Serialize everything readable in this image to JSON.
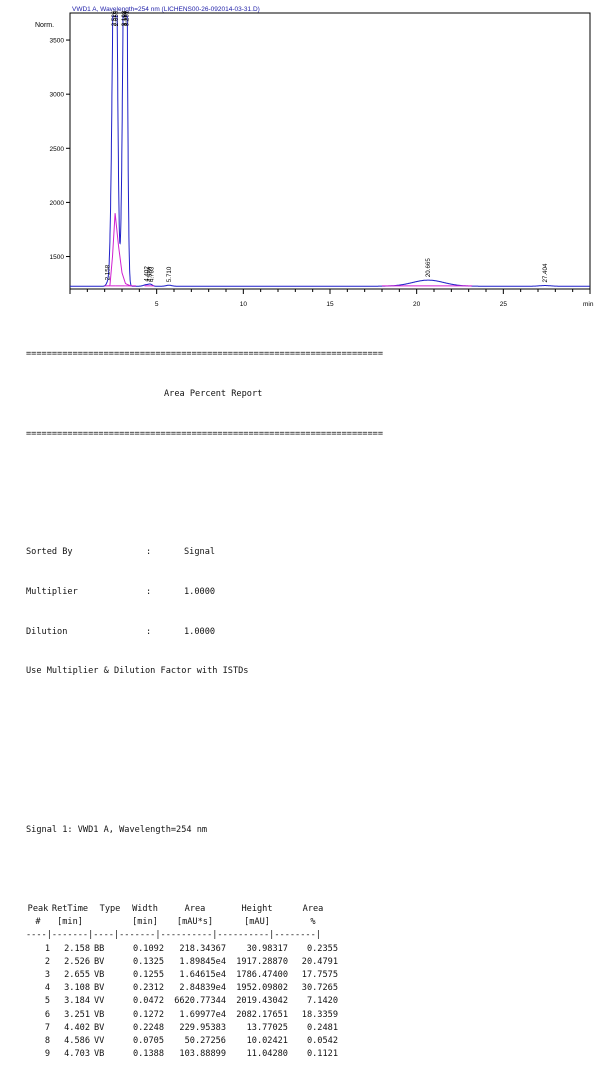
{
  "chart_data": {
    "type": "line",
    "title": "VWD1 A, Wavelength=254 nm (LICHENS00-26-092014-03-31.D)",
    "ylabel": "Norm.",
    "xlabel": "min",
    "xlim": [
      0,
      30
    ],
    "ylim": [
      1200,
      3750
    ],
    "xticks": [
      "5",
      "10",
      "15",
      "20",
      "25"
    ],
    "yticks": [
      "1500",
      "2000",
      "2500",
      "3000",
      "3500"
    ],
    "peak_labels": [
      "2.158",
      "2.526",
      "2.655",
      "3.108",
      "3.184",
      "3.251",
      "4.402",
      "4.586",
      "4.703",
      "5.710",
      "20.665",
      "27.404"
    ],
    "peaks": [
      {
        "x": 2.158,
        "height": 1252
      },
      {
        "x": 2.526,
        "height": 3600
      },
      {
        "x": 2.655,
        "height": 3600
      },
      {
        "x": 3.108,
        "height": 3600
      },
      {
        "x": 3.184,
        "height": 3600
      },
      {
        "x": 3.251,
        "height": 3600
      },
      {
        "x": 4.402,
        "height": 1240
      },
      {
        "x": 4.586,
        "height": 1236
      },
      {
        "x": 4.703,
        "height": 1236
      },
      {
        "x": 5.71,
        "height": 1235
      },
      {
        "x": 20.665,
        "height": 1282
      },
      {
        "x": 27.404,
        "height": 1232
      }
    ],
    "baseline": 1226,
    "series_colors": {
      "trace": "#1f1fc8",
      "integration": "#d020d0",
      "title": "#1a1aa6"
    }
  },
  "report": {
    "separator": "=====================================================================",
    "title": "Area Percent Report",
    "settings": [
      {
        "label": "Sorted By",
        "sep": ":",
        "value": "Signal"
      },
      {
        "label": "Multiplier",
        "sep": ":",
        "value": "1.0000"
      },
      {
        "label": "Dilution",
        "sep": ":",
        "value": "1.0000"
      }
    ],
    "note": "Use Multiplier & Dilution Factor with ISTDs",
    "signal": "Signal 1: VWD1 A, Wavelength=254 nm",
    "header1": [
      "Peak",
      "RetTime",
      "Type",
      "Width",
      "Area",
      "Height",
      "Area"
    ],
    "header2": [
      "#",
      "[min]",
      "",
      "[min]",
      "[mAU*s]",
      "[mAU]",
      "%"
    ],
    "rule": "----|-------|----|-------|----------|----------|--------|",
    "rows": [
      [
        "1",
        "2.158",
        "BB",
        "0.1092",
        "218.34367",
        "30.98317",
        "0.2355"
      ],
      [
        "2",
        "2.526",
        "BV",
        "0.1325",
        "1.89845e4",
        "1917.28870",
        "20.4791"
      ],
      [
        "3",
        "2.655",
        "VB",
        "0.1255",
        "1.64615e4",
        "1786.47400",
        "17.7575"
      ],
      [
        "4",
        "3.108",
        "BV",
        "0.2312",
        "2.84839e4",
        "1952.09802",
        "30.7265"
      ],
      [
        "5",
        "3.184",
        "VV",
        "0.0472",
        "6620.77344",
        "2019.43042",
        "7.1420"
      ],
      [
        "6",
        "3.251",
        "VB",
        "0.1272",
        "1.69977e4",
        "2082.17651",
        "18.3359"
      ],
      [
        "7",
        "4.402",
        "BV",
        "0.2248",
        "229.95383",
        "13.77025",
        "0.2481"
      ],
      [
        "8",
        "4.586",
        "VV",
        "0.0705",
        "50.27256",
        "10.02421",
        "0.0542"
      ],
      [
        "9",
        "4.703",
        "VB",
        "0.1388",
        "103.88899",
        "11.04280",
        "0.1121"
      ]
    ]
  }
}
